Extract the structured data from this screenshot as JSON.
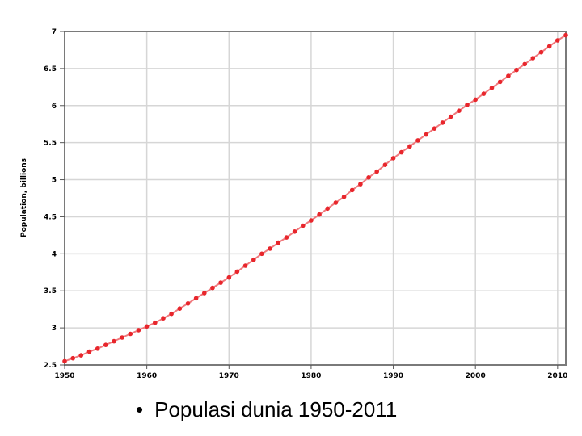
{
  "chart_data": {
    "type": "line",
    "title": "",
    "xlabel": "",
    "ylabel": "Population, billions",
    "xlim": [
      1950,
      2011
    ],
    "ylim": [
      2.5,
      7
    ],
    "x_ticks": [
      1950,
      1960,
      1970,
      1980,
      1990,
      2000,
      2010
    ],
    "x_tick_labels": [
      "1950",
      "1960",
      "1970",
      "1980",
      "1990",
      "2000",
      "2010"
    ],
    "y_ticks": [
      2.5,
      3,
      3.5,
      4,
      4.5,
      5,
      5.5,
      6,
      6.5,
      7
    ],
    "y_tick_labels": [
      "2.5",
      "3",
      "3.5",
      "4",
      "4.5",
      "5",
      "5.5",
      "6",
      "6.5",
      "7"
    ],
    "grid": true,
    "series": [
      {
        "name": "",
        "color": "#e8262c",
        "x": [
          1950,
          1951,
          1952,
          1953,
          1954,
          1955,
          1956,
          1957,
          1958,
          1959,
          1960,
          1961,
          1962,
          1963,
          1964,
          1965,
          1966,
          1967,
          1968,
          1969,
          1970,
          1971,
          1972,
          1973,
          1974,
          1975,
          1976,
          1977,
          1978,
          1979,
          1980,
          1981,
          1982,
          1983,
          1984,
          1985,
          1986,
          1987,
          1988,
          1989,
          1990,
          1991,
          1992,
          1993,
          1994,
          1995,
          1996,
          1997,
          1998,
          1999,
          2000,
          2001,
          2002,
          2003,
          2004,
          2005,
          2006,
          2007,
          2008,
          2009,
          2010,
          2011
        ],
        "y": [
          2.55,
          2.59,
          2.63,
          2.68,
          2.72,
          2.77,
          2.82,
          2.87,
          2.92,
          2.97,
          3.02,
          3.07,
          3.13,
          3.19,
          3.26,
          3.33,
          3.4,
          3.47,
          3.54,
          3.61,
          3.68,
          3.76,
          3.84,
          3.92,
          4.0,
          4.07,
          4.15,
          4.22,
          4.3,
          4.38,
          4.45,
          4.53,
          4.61,
          4.69,
          4.77,
          4.86,
          4.94,
          5.03,
          5.11,
          5.2,
          5.29,
          5.37,
          5.45,
          5.53,
          5.61,
          5.69,
          5.77,
          5.85,
          5.93,
          6.01,
          6.08,
          6.16,
          6.24,
          6.32,
          6.4,
          6.48,
          6.56,
          6.64,
          6.72,
          6.8,
          6.88,
          6.95
        ]
      }
    ]
  },
  "caption": {
    "bullet": "•",
    "text": "Populasi dunia 1950-2011"
  }
}
